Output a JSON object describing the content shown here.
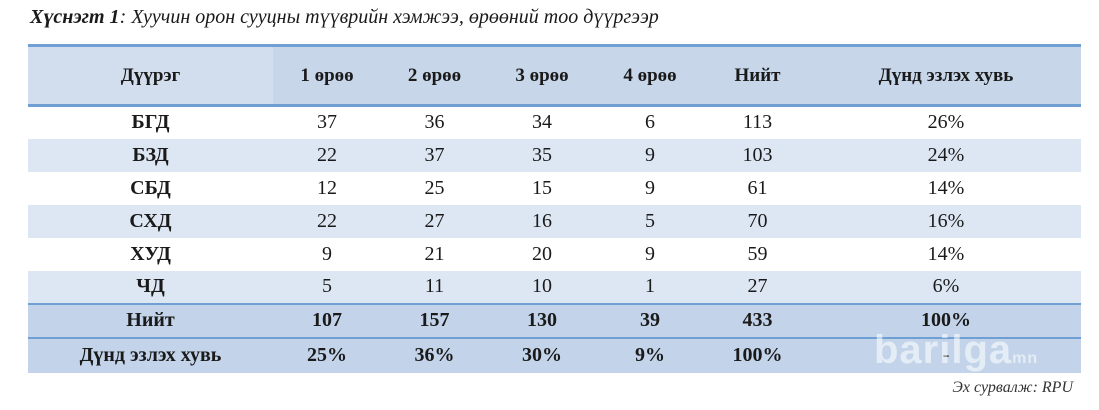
{
  "caption": {
    "lead": "Хүснэгт 1",
    "text": ": Хуучин орон сууцны түүврийн хэмжээ, өрөөний тоо дүүргээр"
  },
  "table": {
    "headers": [
      "Дүүрэг",
      "1 өрөө",
      "2 өрөө",
      "3 өрөө",
      "4 өрөө",
      "Нийт",
      "Дүнд эзлэх хувь"
    ],
    "rows": [
      [
        "БГД",
        "37",
        "36",
        "34",
        "6",
        "113",
        "26%"
      ],
      [
        "БЗД",
        "22",
        "37",
        "35",
        "9",
        "103",
        "24%"
      ],
      [
        "СБД",
        "12",
        "25",
        "15",
        "9",
        "61",
        "14%"
      ],
      [
        "СХД",
        "22",
        "27",
        "16",
        "5",
        "70",
        "16%"
      ],
      [
        "ХУД",
        "9",
        "21",
        "20",
        "9",
        "59",
        "14%"
      ],
      [
        "ЧД",
        "5",
        "11",
        "10",
        "1",
        "27",
        "6%"
      ]
    ],
    "total": [
      "Нийт",
      "107",
      "157",
      "130",
      "39",
      "433",
      "100%"
    ],
    "share": [
      "Дүнд эзлэх хувь",
      "25%",
      "36%",
      "30%",
      "9%",
      "100%",
      "-"
    ]
  },
  "source": "Эх сурвалж: RPU",
  "watermark": {
    "brand": "barilga",
    "suffix": "mn"
  },
  "colors": {
    "header_bg": "#c7d6e9",
    "stripe_bg": "#dde7f3",
    "total_bg": "#c3d4ea",
    "rule": "#6f9fd3"
  }
}
